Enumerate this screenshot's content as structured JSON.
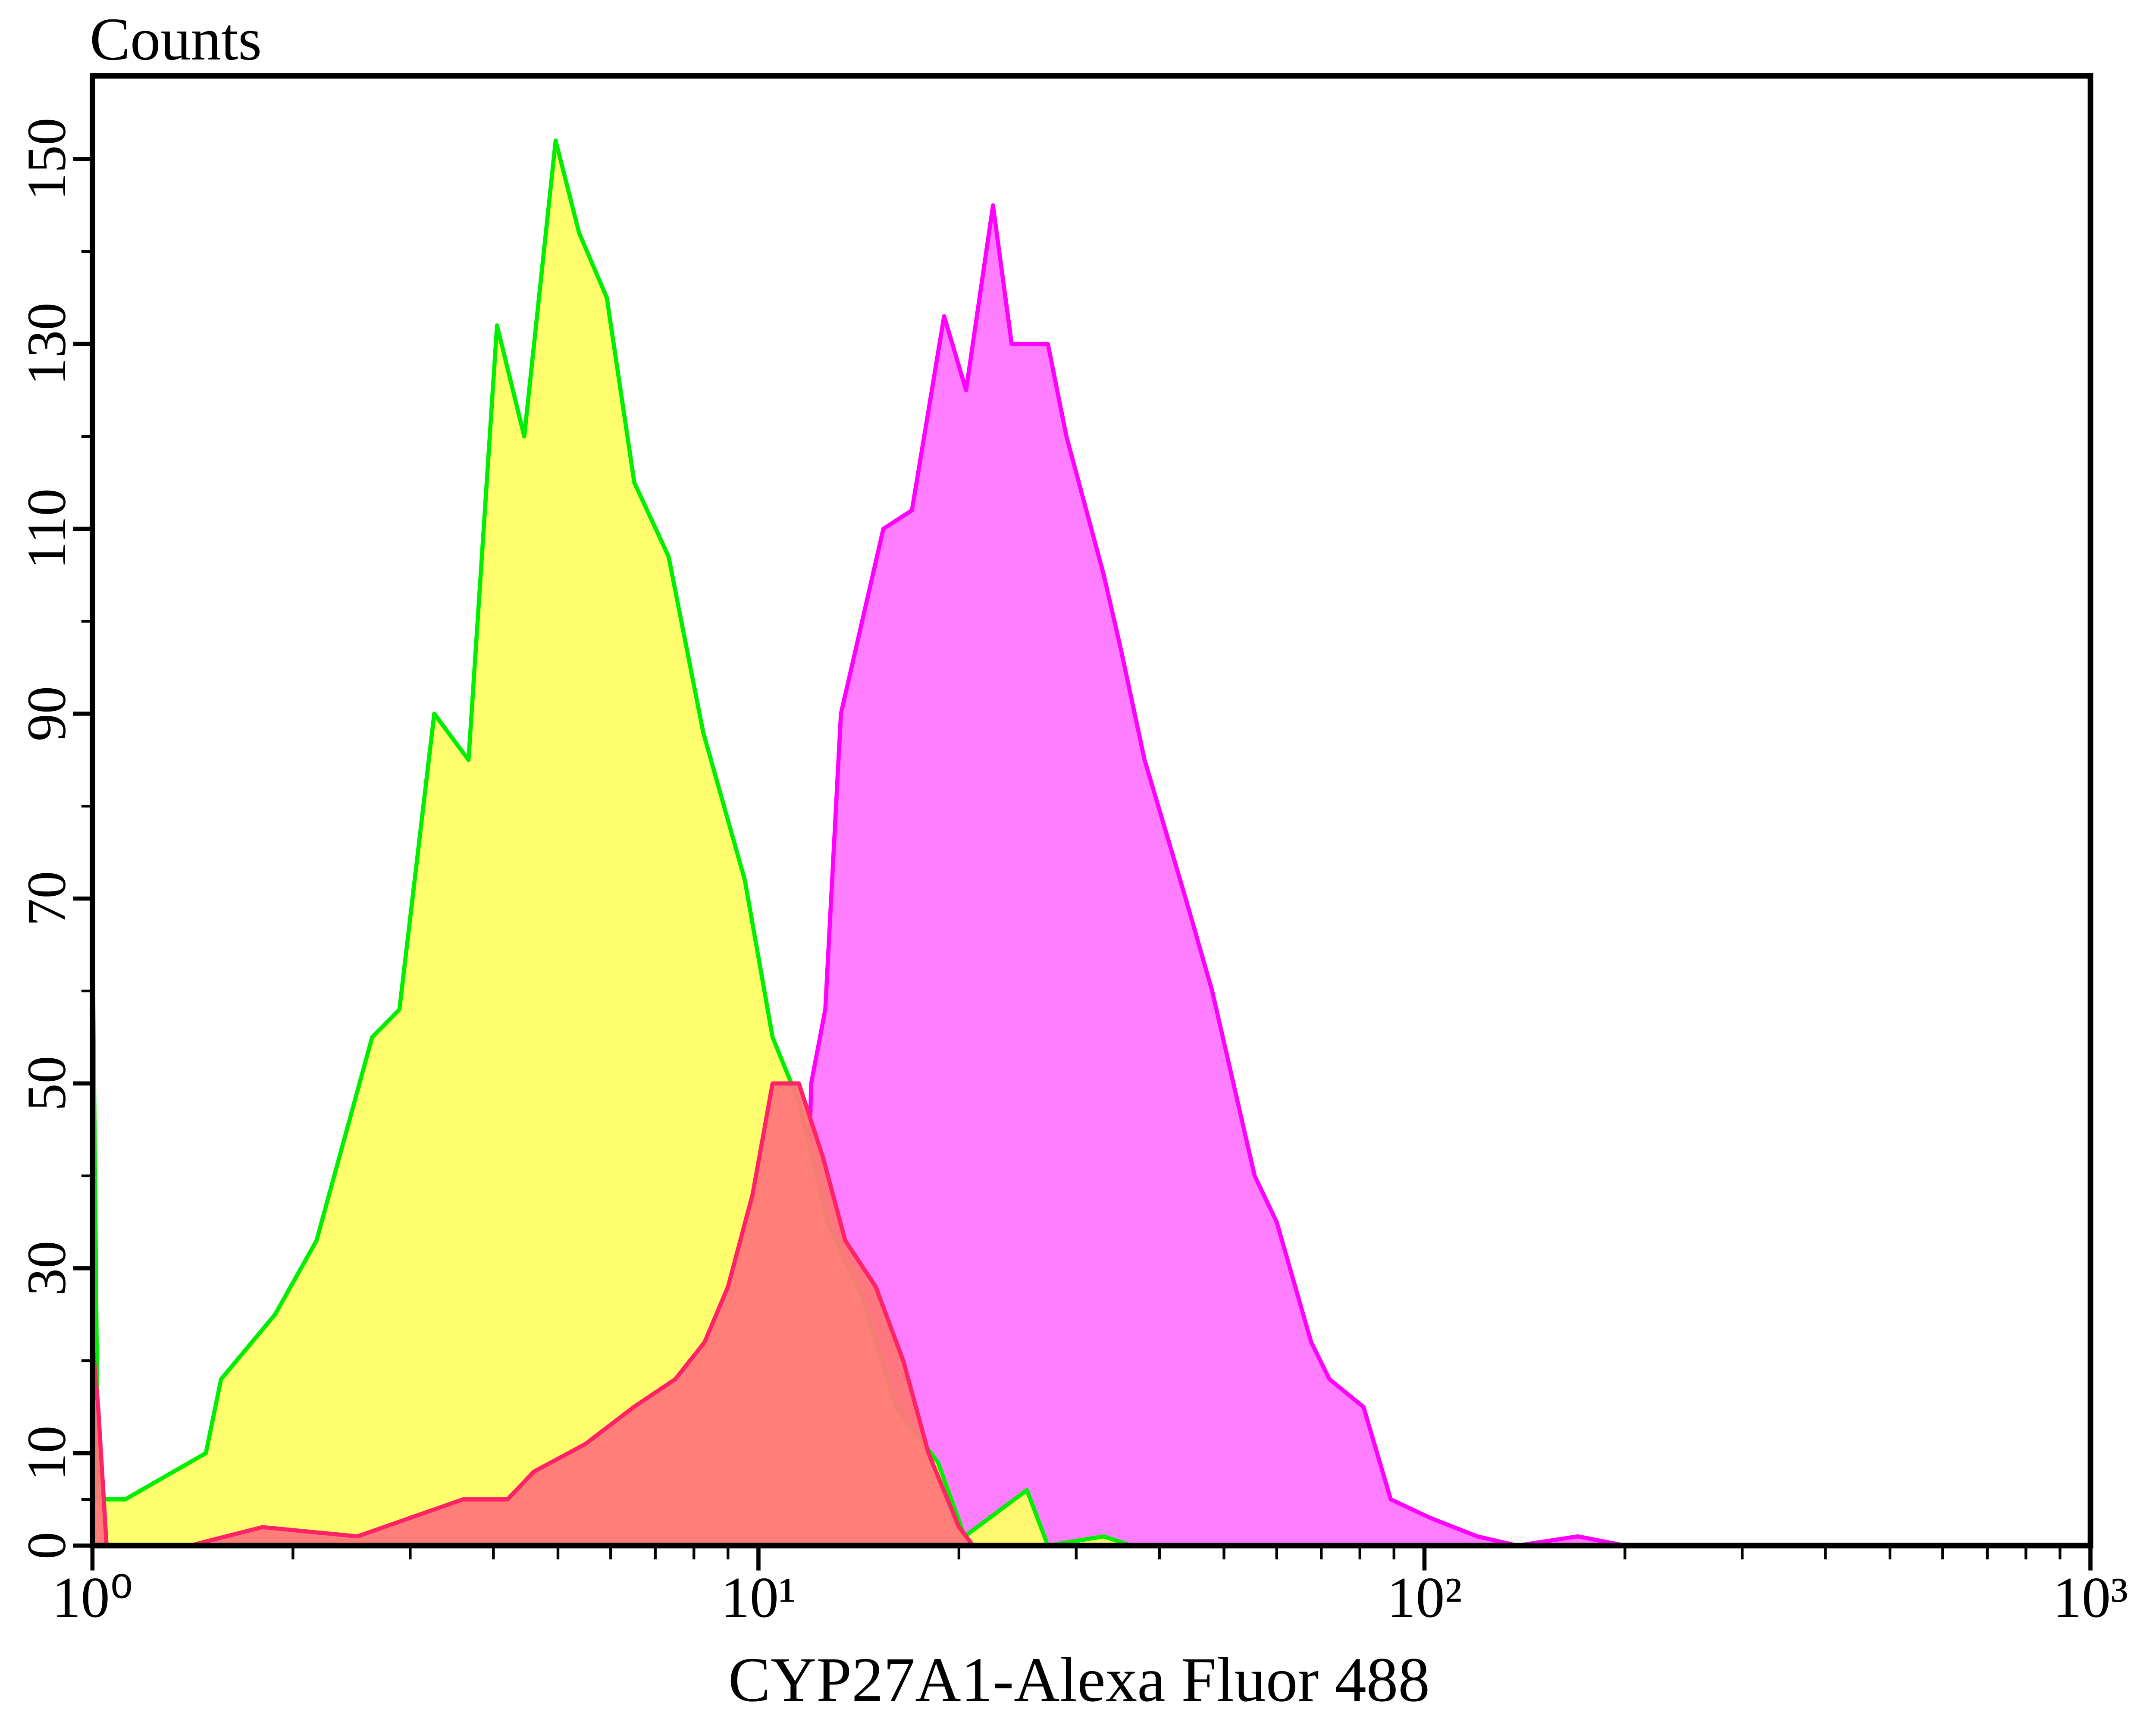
{
  "chart_data": {
    "type": "area",
    "title": "Counts",
    "x_label": "CYP27A1-Alexa Fluor 488",
    "x_scale": "log",
    "xlim": [
      1,
      1000
    ],
    "xticks": [
      {
        "value": 1,
        "label": "10⁰"
      },
      {
        "value": 10,
        "label": "10¹"
      },
      {
        "value": 100,
        "label": "10²"
      },
      {
        "value": 1000,
        "label": "10³"
      }
    ],
    "ylim": [
      0,
      159
    ],
    "yticks": [
      0,
      10,
      30,
      50,
      70,
      90,
      110,
      130,
      150
    ],
    "series": [
      {
        "color": "#ff00ff",
        "fill": "#ff77ff",
        "x": [
          11.5,
          12,
          12.6,
          13.3,
          15.4,
          17,
          19,
          20.5,
          22.5,
          24,
          27.2,
          29,
          33,
          35,
          38,
          43.8,
          48,
          55.6,
          60,
          67.6,
          72,
          81,
          89,
          102,
          120,
          138,
          170,
          200
        ],
        "values": [
          0,
          50,
          58,
          90,
          110,
          112,
          133,
          125,
          145,
          130,
          130,
          120,
          105,
          97,
          85,
          70,
          60,
          40,
          35,
          22,
          18,
          15,
          5,
          3,
          1,
          0,
          1,
          0
        ]
      },
      {
        "color": "#00ee00",
        "fill": "#ffff66",
        "x": [
          1,
          1.02,
          1.12,
          1.48,
          1.56,
          1.88,
          2.17,
          2.63,
          2.89,
          3.26,
          3.67,
          4.05,
          4.45,
          4.96,
          5.38,
          5.92,
          6.51,
          7.33,
          8.26,
          9.54,
          10.5,
          11.5,
          12.7,
          14.3,
          16.1,
          18.6,
          20.4,
          25.3,
          27.2,
          33,
          36.3,
          200
        ],
        "values": [
          68,
          5,
          5,
          10,
          18,
          25,
          33,
          55,
          58,
          90,
          85,
          132,
          120,
          152,
          142,
          135,
          115,
          107,
          88,
          72,
          55,
          48,
          35,
          27,
          15,
          9,
          1,
          6,
          0,
          1,
          0,
          0
        ]
      },
      {
        "color": "#ff2266",
        "fill": "#ff7777",
        "x": [
          1,
          1.02,
          1.05,
          1.4,
          1.8,
          2.5,
          3,
          3.6,
          4.2,
          4.6,
          5.5,
          6.5,
          7.5,
          8.3,
          9,
          9.8,
          10.5,
          11.5,
          12.5,
          13.5,
          15,
          16.5,
          18,
          20,
          21,
          30
        ],
        "values": [
          22,
          15,
          0,
          0,
          2,
          1,
          3,
          5,
          5,
          8,
          11,
          15,
          18,
          22,
          28,
          38,
          50,
          50,
          42,
          33,
          28,
          20,
          10,
          2,
          0,
          0
        ]
      }
    ]
  }
}
